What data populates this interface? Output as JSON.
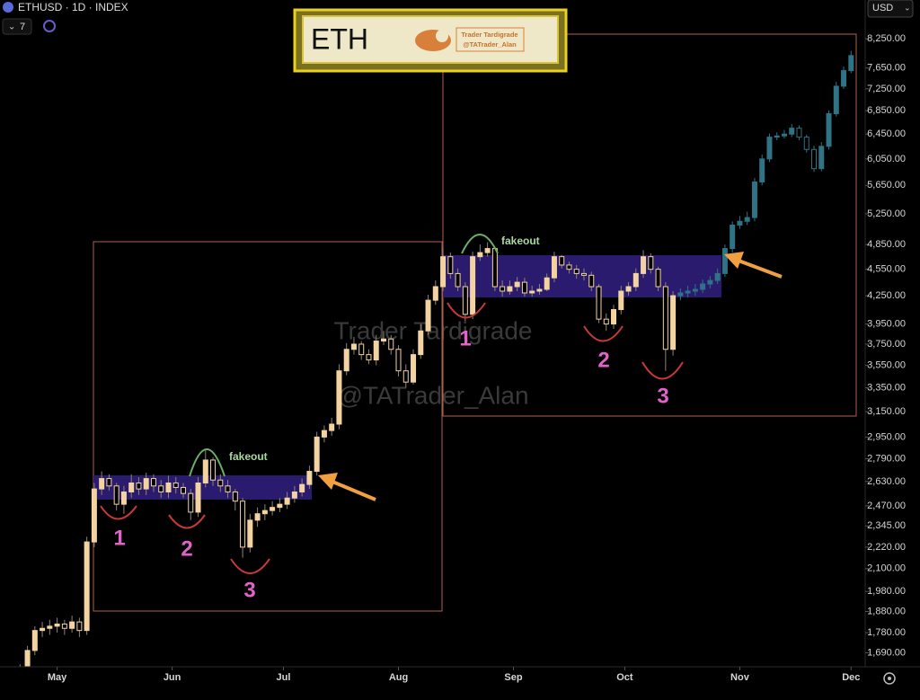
{
  "header": {
    "symbol": "ETHUSD · 1D · INDEX",
    "indicators": "7",
    "currency": "USD"
  },
  "logo": {
    "ticker": "ETH",
    "name": "Trader Tardigrade",
    "handle": "@TATrader_Alan"
  },
  "chart_data": {
    "type": "candlestick",
    "log_scale": true,
    "watermark": [
      "Trader Tardigrade",
      "@TATrader_Alan"
    ],
    "annotations": {
      "fakeout": [
        "fakeout",
        "fakeout"
      ],
      "touches": [
        "1",
        "2",
        "3",
        "1",
        "2",
        "3"
      ]
    },
    "xlim": [
      -2.7,
      113.9
    ],
    "xticks": [
      {
        "value": 5,
        "label": "May"
      },
      {
        "value": 20.5,
        "label": "Jun"
      },
      {
        "value": 35.5,
        "label": "Jul"
      },
      {
        "value": 51,
        "label": "Aug"
      },
      {
        "value": 66.5,
        "label": "Sep"
      },
      {
        "value": 81.5,
        "label": "Oct"
      },
      {
        "value": 97,
        "label": "Nov"
      },
      {
        "value": 112,
        "label": "Dec"
      }
    ],
    "ylim": [
      1630,
      9120
    ],
    "yticks": [
      {
        "value": 8250,
        "label": "8,250.00"
      },
      {
        "value": 7650,
        "label": "7,650.00"
      },
      {
        "value": 7250,
        "label": "7,250.00"
      },
      {
        "value": 6850,
        "label": "6,850.00"
      },
      {
        "value": 6450,
        "label": "6,450.00"
      },
      {
        "value": 6050,
        "label": "6,050.00"
      },
      {
        "value": 5650,
        "label": "5,650.00"
      },
      {
        "value": 5250,
        "label": "5,250.00"
      },
      {
        "value": 4850,
        "label": "4,850.00"
      },
      {
        "value": 4550,
        "label": "4,550.00"
      },
      {
        "value": 4250,
        "label": "4,250.00"
      },
      {
        "value": 3950,
        "label": "3,950.00"
      },
      {
        "value": 3750,
        "label": "3,750.00"
      },
      {
        "value": 3550,
        "label": "3,550.00"
      },
      {
        "value": 3350,
        "label": "3,350.00"
      },
      {
        "value": 3150,
        "label": "3,150.00"
      },
      {
        "value": 2950,
        "label": "2,950.00"
      },
      {
        "value": 2790,
        "label": "2,790.00"
      },
      {
        "value": 2630,
        "label": "2,630.00"
      },
      {
        "value": 2470,
        "label": "2,470.00"
      },
      {
        "value": 2345,
        "label": "2,345.00"
      },
      {
        "value": 2220,
        "label": "2,220.00"
      },
      {
        "value": 2100,
        "label": "2,100.00"
      },
      {
        "value": 1980,
        "label": "1,980.00"
      },
      {
        "value": 1880,
        "label": "1,880.00"
      },
      {
        "value": 1780,
        "label": "1,780.00"
      },
      {
        "value": 1690,
        "label": "1,690.00"
      }
    ],
    "series": [
      {
        "color": "#f3d3a0",
        "x": [
          0,
          1,
          2,
          3,
          4,
          5,
          6,
          7,
          8,
          9,
          10,
          11,
          12,
          13,
          14,
          15,
          16,
          17,
          18,
          19,
          20,
          21,
          22,
          23,
          24,
          25,
          26,
          27,
          28,
          29,
          30,
          31,
          32,
          33,
          34,
          35,
          36,
          37,
          38,
          39,
          40,
          41,
          42,
          43,
          44,
          45,
          46,
          47,
          48,
          49,
          50,
          51,
          52,
          53,
          54,
          55,
          56,
          57,
          58,
          59,
          60,
          61,
          62,
          63,
          64,
          65,
          66,
          67,
          68,
          69,
          70,
          71,
          72,
          73,
          74,
          75,
          76,
          77,
          78,
          79,
          80,
          81,
          82,
          83,
          84,
          85,
          86,
          87,
          88
        ],
        "open": [
          1600,
          1620,
          1700,
          1790,
          1800,
          1810,
          1820,
          1800,
          1830,
          1790,
          2250,
          2580,
          2650,
          2600,
          2480,
          2560,
          2620,
          2580,
          2650,
          2600,
          2560,
          2620,
          2590,
          2550,
          2430,
          2620,
          2780,
          2640,
          2600,
          2560,
          2500,
          2220,
          2380,
          2420,
          2440,
          2460,
          2480,
          2520,
          2560,
          2610,
          2700,
          2950,
          3000,
          3050,
          3500,
          3700,
          3750,
          3650,
          3600,
          3780,
          3800,
          3700,
          3500,
          3400,
          3650,
          3880,
          4200,
          4350,
          4700,
          4500,
          4350,
          4050,
          4700,
          4750,
          4800,
          4350,
          4300,
          4350,
          4400,
          4280,
          4300,
          4320,
          4450,
          4700,
          4600,
          4550,
          4500,
          4480,
          4350,
          4000,
          3950,
          4100,
          4300,
          4350,
          4500,
          4700,
          4550,
          4350,
          3700
        ],
        "high": [
          1640,
          1720,
          1810,
          1830,
          1840,
          1850,
          1840,
          1860,
          1850,
          2280,
          2620,
          2700,
          2680,
          2620,
          2600,
          2680,
          2660,
          2690,
          2680,
          2640,
          2670,
          2660,
          2620,
          2580,
          2660,
          2850,
          2800,
          2680,
          2640,
          2580,
          2520,
          2420,
          2460,
          2480,
          2500,
          2520,
          2560,
          2600,
          2650,
          2740,
          2990,
          3040,
          3100,
          3560,
          3760,
          3820,
          3780,
          3700,
          3840,
          3880,
          3840,
          3740,
          3560,
          3700,
          3950,
          4260,
          4420,
          4800,
          4750,
          4560,
          4400,
          4760,
          4850,
          4880,
          4820,
          4420,
          4420,
          4460,
          4450,
          4360,
          4380,
          4500,
          4760,
          4720,
          4640,
          4600,
          4560,
          4520,
          4380,
          4060,
          4150,
          4360,
          4400,
          4560,
          4780,
          4740,
          4580,
          4400,
          4300
        ],
        "low": [
          1580,
          1600,
          1680,
          1760,
          1770,
          1780,
          1770,
          1780,
          1760,
          1770,
          2220,
          2540,
          2570,
          2440,
          2420,
          2520,
          2540,
          2540,
          2560,
          2520,
          2520,
          2550,
          2520,
          2380,
          2400,
          2590,
          2600,
          2560,
          2520,
          2440,
          2160,
          2190,
          2340,
          2380,
          2410,
          2430,
          2450,
          2490,
          2530,
          2580,
          2670,
          2910,
          2960,
          3010,
          3460,
          3650,
          3600,
          3560,
          3550,
          3740,
          3650,
          3450,
          3350,
          3380,
          3610,
          3840,
          4150,
          4300,
          4440,
          4300,
          3980,
          4000,
          4650,
          4700,
          4300,
          4240,
          4260,
          4300,
          4240,
          4240,
          4260,
          4300,
          4400,
          4560,
          4500,
          4440,
          4420,
          4300,
          3960,
          3880,
          3900,
          4050,
          4250,
          4300,
          4450,
          4500,
          4300,
          3500,
          3640
        ],
        "close": [
          1620,
          1700,
          1790,
          1800,
          1810,
          1820,
          1800,
          1830,
          1790,
          2250,
          2580,
          2650,
          2600,
          2480,
          2560,
          2620,
          2580,
          2650,
          2600,
          2560,
          2620,
          2590,
          2550,
          2430,
          2620,
          2780,
          2640,
          2600,
          2560,
          2500,
          2220,
          2380,
          2420,
          2440,
          2460,
          2480,
          2520,
          2560,
          2610,
          2700,
          2950,
          3000,
          3050,
          3500,
          3700,
          3750,
          3650,
          3600,
          3780,
          3800,
          3700,
          3500,
          3400,
          3650,
          3880,
          4200,
          4350,
          4700,
          4500,
          4350,
          4050,
          4700,
          4750,
          4800,
          4350,
          4300,
          4350,
          4400,
          4280,
          4300,
          4320,
          4450,
          4700,
          4600,
          4550,
          4500,
          4480,
          4350,
          4000,
          3950,
          4100,
          4300,
          4350,
          4500,
          4700,
          4550,
          4350,
          3700,
          4250
        ]
      },
      {
        "color": "#2f7385",
        "x": [
          89,
          90,
          91,
          92,
          93,
          94,
          95,
          96,
          97,
          98,
          99,
          100,
          101,
          102,
          103,
          104,
          105,
          106,
          107,
          108,
          109,
          110,
          111,
          112
        ],
        "open": [
          4250,
          4280,
          4300,
          4320,
          4380,
          4420,
          4500,
          4800,
          5100,
          5150,
          5200,
          5700,
          6050,
          6400,
          6420,
          6450,
          6550,
          6400,
          6200,
          5900,
          6250,
          6800,
          7300,
          7600
        ],
        "high": [
          4330,
          4360,
          4380,
          4430,
          4470,
          4560,
          4850,
          5150,
          5220,
          5280,
          5760,
          6120,
          6460,
          6480,
          6520,
          6620,
          6600,
          6440,
          6260,
          6320,
          6860,
          7380,
          7680,
          8000
        ],
        "low": [
          4200,
          4230,
          4250,
          4280,
          4330,
          4380,
          4460,
          4750,
          5050,
          5100,
          5150,
          5650,
          6000,
          6350,
          6380,
          6400,
          6350,
          6150,
          5850,
          5860,
          6200,
          6750,
          7250,
          7550
        ],
        "close": [
          4280,
          4300,
          4320,
          4380,
          4420,
          4500,
          4800,
          5100,
          5150,
          5200,
          5700,
          6050,
          6400,
          6420,
          6450,
          6550,
          6400,
          6200,
          5900,
          6250,
          6800,
          7300,
          7600,
          7900
        ]
      }
    ]
  }
}
